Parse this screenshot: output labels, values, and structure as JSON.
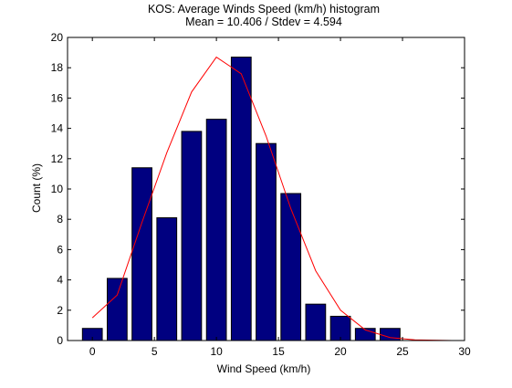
{
  "chart_data": {
    "type": "bar",
    "title_line1": "KOS: Average Winds Speed (km/h) histogram",
    "title_line2": "Mean = 10.406 / Stdev = 4.594",
    "xlabel": "Wind Speed (km/h)",
    "ylabel": "Count (%)",
    "xlim": [
      -2,
      30
    ],
    "ylim": [
      0,
      20
    ],
    "xticks": [
      0,
      5,
      10,
      15,
      20,
      25,
      30
    ],
    "yticks": [
      0,
      2,
      4,
      6,
      8,
      10,
      12,
      14,
      16,
      18,
      20
    ],
    "grid": false,
    "bars": {
      "x": [
        0,
        2,
        4,
        6,
        8,
        10,
        12,
        14,
        16,
        18,
        20,
        22,
        24
      ],
      "values": [
        0.8,
        4.1,
        11.4,
        8.1,
        13.8,
        14.6,
        18.7,
        13.0,
        9.7,
        2.4,
        1.6,
        0.8,
        0.8
      ],
      "color": "#000080"
    },
    "fit_line": {
      "x": [
        0,
        2,
        4,
        6,
        8,
        10,
        12,
        14,
        16,
        18,
        20,
        22,
        24,
        26,
        28,
        29
      ],
      "values": [
        1.5,
        3.0,
        7.8,
        12.4,
        16.4,
        18.7,
        17.6,
        13.5,
        8.7,
        4.6,
        2.0,
        0.7,
        0.2,
        0.05,
        0.01,
        0.0
      ],
      "color": "#ff0000"
    }
  }
}
